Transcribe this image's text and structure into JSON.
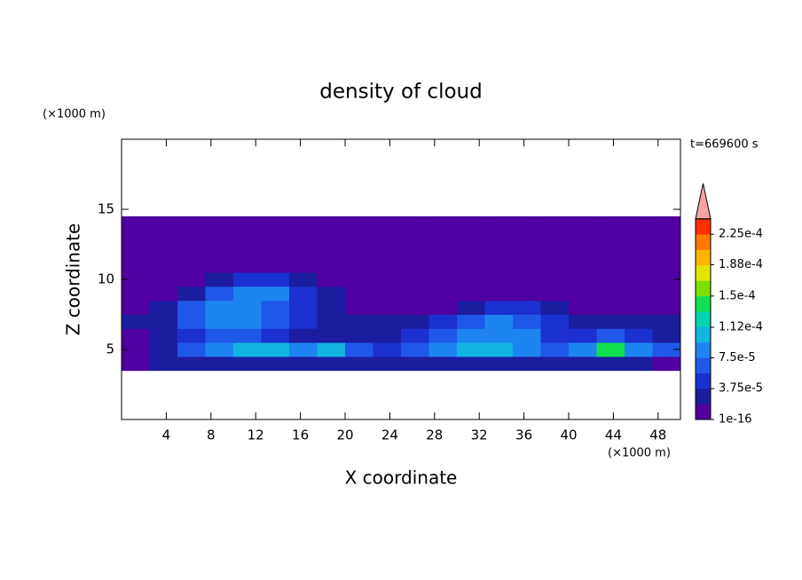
{
  "chart_data": {
    "type": "contour",
    "title": "density of cloud",
    "xlabel": "X coordinate",
    "ylabel": "Z coordinate",
    "x_unit": "(×1000 m)",
    "y_unit": "(×1000 m)",
    "annotation": "t=669600 s",
    "xlim": [
      0,
      50
    ],
    "ylim": [
      0,
      20
    ],
    "xticks": [
      4,
      8,
      12,
      16,
      20,
      24,
      28,
      32,
      36,
      40,
      44,
      48
    ],
    "yticks": [
      5,
      10,
      15
    ],
    "field_x": [
      0,
      2.5,
      5,
      7.5,
      10,
      12.5,
      15,
      17.5,
      20,
      22.5,
      25,
      27.5,
      30,
      32.5,
      35,
      37.5,
      40,
      42.5,
      45,
      47.5,
      50
    ],
    "field_z": [
      3.5,
      4.5,
      5.5,
      6.5,
      7.5,
      8.5,
      9.5,
      10.5,
      11.5,
      12.5,
      13.5,
      14.5
    ],
    "field": [
      [
        1e-05,
        3e-05,
        3e-05,
        3e-05,
        3e-05,
        3e-05,
        3e-05,
        3e-05,
        3e-05,
        3e-05,
        3e-05,
        3e-05,
        3e-05,
        3e-05,
        3e-05,
        3e-05,
        3e-05,
        3e-05,
        3e-05,
        1e-05
      ],
      [
        1e-05,
        3e-05,
        7e-05,
        9e-05,
        0.00011,
        0.00011,
        9e-05,
        0.00011,
        7e-05,
        5e-05,
        7e-05,
        9e-05,
        0.00011,
        0.00011,
        9e-05,
        7e-05,
        9e-05,
        0.00015,
        9e-05,
        7e-05
      ],
      [
        1e-05,
        3e-05,
        5e-05,
        7e-05,
        7e-05,
        5e-05,
        3e-05,
        3e-05,
        3e-05,
        3e-05,
        5e-05,
        7e-05,
        9e-05,
        9e-05,
        9e-05,
        5e-05,
        5e-05,
        7e-05,
        5e-05,
        3e-05
      ],
      [
        3e-05,
        3e-05,
        7e-05,
        9e-05,
        9e-05,
        7e-05,
        5e-05,
        3e-05,
        3e-05,
        3e-05,
        3e-05,
        5e-05,
        7e-05,
        9e-05,
        7e-05,
        5e-05,
        3e-05,
        3e-05,
        3e-05,
        3e-05
      ],
      [
        1e-05,
        3e-05,
        7e-05,
        9e-05,
        9e-05,
        7e-05,
        5e-05,
        3e-05,
        1e-05,
        1e-05,
        1e-05,
        1e-05,
        3e-05,
        5e-05,
        5e-05,
        3e-05,
        1e-05,
        1e-05,
        1e-05,
        1e-05
      ],
      [
        1e-05,
        1e-05,
        3e-05,
        7e-05,
        9e-05,
        9e-05,
        5e-05,
        3e-05,
        1e-05,
        1e-05,
        1e-05,
        1e-05,
        1e-05,
        1e-05,
        1e-05,
        1e-05,
        1e-05,
        1e-05,
        1e-05,
        1e-05
      ],
      [
        1e-05,
        1e-05,
        1e-05,
        3e-05,
        5e-05,
        5e-05,
        3e-05,
        1e-05,
        1e-05,
        1e-05,
        1e-05,
        1e-05,
        1e-05,
        1e-05,
        1e-05,
        1e-05,
        1e-05,
        1e-05,
        1e-05,
        1e-05
      ],
      [
        1e-05,
        1e-05,
        1e-05,
        1e-05,
        1e-05,
        1e-05,
        1e-05,
        1e-05,
        1e-05,
        1e-05,
        1e-05,
        1e-05,
        1e-05,
        1e-05,
        1e-05,
        1e-05,
        1e-05,
        1e-05,
        1e-05,
        1e-05
      ],
      [
        1e-05,
        1e-05,
        1e-05,
        1e-05,
        1e-05,
        1e-05,
        1e-05,
        1e-05,
        1e-05,
        1e-05,
        1e-05,
        1e-05,
        1e-05,
        1e-05,
        1e-05,
        1e-05,
        1e-05,
        1e-05,
        1e-05,
        1e-05
      ],
      [
        1e-05,
        1e-05,
        1e-05,
        1e-05,
        1e-05,
        1e-05,
        1e-05,
        1e-05,
        1e-05,
        1e-05,
        1e-05,
        1e-05,
        1e-05,
        1e-05,
        1e-05,
        1e-05,
        1e-05,
        1e-05,
        1e-05,
        1e-05
      ],
      [
        1e-05,
        1e-05,
        1e-05,
        1e-05,
        1e-05,
        1e-05,
        1e-05,
        1e-05,
        1e-05,
        1e-05,
        1e-05,
        1e-05,
        1e-05,
        1e-05,
        1e-05,
        1e-05,
        1e-05,
        1e-05,
        1e-05,
        1e-05
      ]
    ],
    "colorbar": {
      "colors": [
        "#5000a0",
        "#1c1ca0",
        "#1a30d0",
        "#1f58e8",
        "#1e84f2",
        "#12b4e0",
        "#00d4b0",
        "#10e050",
        "#80e000",
        "#e0e600",
        "#ffb400",
        "#ff7800",
        "#ff3000"
      ],
      "extend_color": "#f4a4a4",
      "ticks": [
        {
          "value": 1e-16,
          "label": "1e-16"
        },
        {
          "value": 3.75e-05,
          "label": "3.75e-5"
        },
        {
          "value": 7.5e-05,
          "label": "7.5e-5"
        },
        {
          "value": 0.000112,
          "label": "1.12e-4"
        },
        {
          "value": 0.00015,
          "label": "1.5e-4"
        },
        {
          "value": 0.000188,
          "label": "1.88e-4"
        },
        {
          "value": 0.000225,
          "label": "2.25e-4"
        }
      ]
    }
  }
}
